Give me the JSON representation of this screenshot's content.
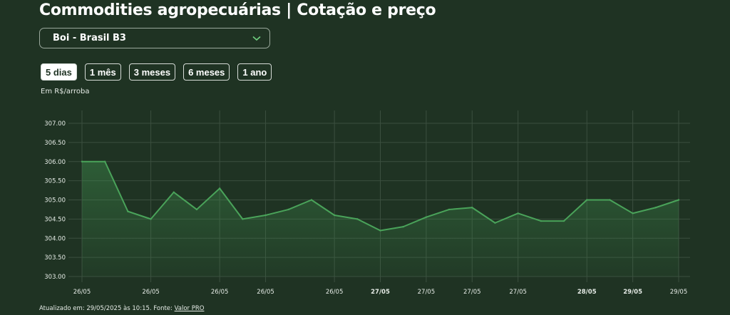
{
  "header": {
    "title": "Commodities agropecuárias | Cotação e preço"
  },
  "selector": {
    "value": "Boi - Brasil B3",
    "icon": "chevron-down-icon",
    "accent_color": "#6fcf7f"
  },
  "periods": [
    {
      "label": "5 dias",
      "active": true
    },
    {
      "label": "1 mês",
      "active": false
    },
    {
      "label": "3 meses",
      "active": false
    },
    {
      "label": "6 meses",
      "active": false
    },
    {
      "label": "1 ano",
      "active": false
    }
  ],
  "unit_label": "Em R$/arroba",
  "footer": {
    "prefix": "Atualizado em: 29/05/2025 às 10:15. Fonte: ",
    "source_link": "Valor PRO"
  },
  "chart_data": {
    "type": "area",
    "ylim": [
      303.0,
      307.0
    ],
    "y_ticks": [
      "303.00",
      "303.50",
      "304.00",
      "304.50",
      "305.00",
      "305.50",
      "306.00",
      "306.50",
      "307.00"
    ],
    "x_tick_labels": [
      {
        "label": "26/05",
        "index": 0,
        "bold": false
      },
      {
        "label": "26/05",
        "index": 3,
        "bold": false
      },
      {
        "label": "26/05",
        "index": 6,
        "bold": false
      },
      {
        "label": "26/05",
        "index": 8,
        "bold": false
      },
      {
        "label": "26/05",
        "index": 11,
        "bold": false
      },
      {
        "label": "27/05",
        "index": 13,
        "bold": true
      },
      {
        "label": "27/05",
        "index": 15,
        "bold": false
      },
      {
        "label": "27/05",
        "index": 17,
        "bold": false
      },
      {
        "label": "27/05",
        "index": 19,
        "bold": false
      },
      {
        "label": "28/05",
        "index": 22,
        "bold": true
      },
      {
        "label": "29/05",
        "index": 24,
        "bold": true
      },
      {
        "label": "29/05",
        "index": 26,
        "bold": false
      }
    ],
    "values": [
      306.0,
      306.0,
      304.7,
      304.5,
      305.2,
      304.75,
      305.3,
      304.5,
      304.6,
      304.75,
      305.0,
      304.6,
      304.5,
      304.2,
      304.3,
      304.55,
      304.75,
      304.8,
      304.4,
      304.65,
      304.45,
      304.45,
      305.0,
      305.0,
      304.65,
      304.8,
      305.0
    ],
    "grid": true,
    "line_color": "#4aa35a"
  }
}
